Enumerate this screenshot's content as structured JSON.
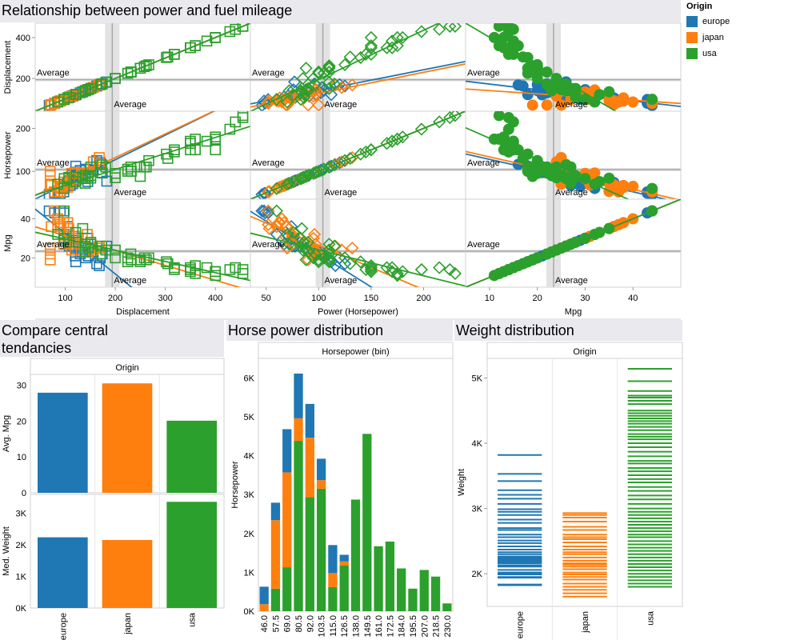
{
  "colors": {
    "europe": "#1f77b4",
    "japan": "#ff7f0e",
    "usa": "#2ca02c"
  },
  "legend": {
    "title": "Origin",
    "items": [
      {
        "label": "europe",
        "color": "#1f77b4"
      },
      {
        "label": "japan",
        "color": "#ff7f0e"
      },
      {
        "label": "usa",
        "color": "#2ca02c"
      }
    ]
  },
  "titles": {
    "scatter": "Relationship between power and fuel mileage",
    "central_1": "Compare central",
    "central_2": "tendancies",
    "hp": "Horse power distribution",
    "weight": "Weight distribution"
  },
  "chart_data": [
    {
      "type": "scatter",
      "title": "Relationship between power and fuel mileage",
      "variables": [
        "Displacement",
        "Horsepower",
        "Mpg"
      ],
      "axis_titles": [
        "Displacement",
        "Power (Horsepower)",
        "Mpg"
      ],
      "reference_label": "Average",
      "ranges": {
        "Displacement": [
          40,
          470
        ],
        "Horsepower": [
          35,
          240
        ],
        "Mpg": [
          5,
          50
        ]
      },
      "ticks": {
        "Displacement": [
          100,
          200,
          300,
          400
        ],
        "Horsepower": [
          50,
          100,
          150,
          200
        ],
        "Mpg": [
          10,
          20,
          30,
          40
        ]
      },
      "row_ticks": {
        "Displacement": [
          200,
          400
        ],
        "Horsepower": [
          100,
          200
        ],
        "Mpg": [
          20,
          40
        ]
      },
      "averages": {
        "Displacement": 194,
        "Horsepower": 104,
        "Mpg": 23.4
      },
      "marks": {
        "Displacement": "square",
        "Horsepower": "diamond",
        "Mpg": "circle"
      },
      "series": [
        {
          "name": "europe",
          "points": [
            [
              68,
              46,
              44
            ],
            [
              79,
              49,
              43
            ],
            [
              90,
              48,
              44
            ],
            [
              97,
              52,
              43
            ],
            [
              97,
              60,
              32
            ],
            [
              98,
              65,
              29
            ],
            [
              105,
              74,
              36
            ],
            [
              107,
              75,
              30
            ],
            [
              108,
              78,
              26
            ],
            [
              110,
              67,
              27
            ],
            [
              114,
              91,
              26
            ],
            [
              115,
              71,
              31
            ],
            [
              116,
              75,
              26
            ],
            [
              120,
              88,
              25
            ],
            [
              120,
              97,
              21
            ],
            [
              121,
              98,
              24
            ],
            [
              121,
              112,
              18
            ],
            [
              122,
              80,
              29
            ],
            [
              130,
              102,
              22
            ],
            [
              134,
              95,
              23
            ],
            [
              140,
              88,
              24
            ],
            [
              141,
              105,
              20
            ],
            [
              145,
              76,
              30
            ],
            [
              146,
              97,
              21
            ],
            [
              156,
              103,
              23
            ],
            [
              163,
              125,
              17
            ],
            [
              168,
              116,
              16
            ],
            [
              170,
              120,
              20
            ],
            [
              174,
              96,
              22
            ],
            [
              183,
              77,
              26
            ]
          ]
        },
        {
          "name": "japan",
          "points": [
            [
              70,
              70,
              25
            ],
            [
              70,
              90,
              19
            ],
            [
              70,
              100,
              22
            ],
            [
              72,
              69,
              36
            ],
            [
              78,
              52,
              44
            ],
            [
              85,
              52,
              37
            ],
            [
              85,
              65,
              40
            ],
            [
              89,
              62,
              38
            ],
            [
              91,
              53,
              35
            ],
            [
              91,
              60,
              36
            ],
            [
              97,
              67,
              38
            ],
            [
              97,
              75,
              27
            ],
            [
              98,
              68,
              31
            ],
            [
              105,
              63,
              38
            ],
            [
              107,
              72,
              35
            ],
            [
              108,
              75,
              32
            ],
            [
              113,
              95,
              24
            ],
            [
              119,
              82,
              30
            ],
            [
              119,
              97,
              27
            ],
            [
              120,
              75,
              31
            ],
            [
              120,
              97,
              24
            ],
            [
              134,
              95,
              30
            ],
            [
              144,
              96,
              32
            ],
            [
              146,
              97,
              23
            ],
            [
              156,
              122,
              24
            ],
            [
              168,
              132,
              25
            ],
            [
              168,
              116,
              26
            ]
          ]
        },
        {
          "name": "usa",
          "points": [
            [
              85,
              70,
              32
            ],
            [
              98,
              60,
              44
            ],
            [
              98,
              83,
              30
            ],
            [
              107,
              86,
              28
            ],
            [
              121,
              76,
              33
            ],
            [
              122,
              86,
              28
            ],
            [
              135,
              84,
              35
            ],
            [
              140,
              72,
              27
            ],
            [
              140,
              83,
              26
            ],
            [
              140,
              90,
              23
            ],
            [
              146,
              88,
              25
            ],
            [
              151,
              84,
              27
            ],
            [
              151,
              90,
              28
            ],
            [
              151,
              110,
              27
            ],
            [
              171,
              97,
              22
            ],
            [
              173,
              115,
              26
            ],
            [
              181,
              110,
              24
            ],
            [
              200,
              85,
              24
            ],
            [
              200,
              95,
              20
            ],
            [
              225,
              105,
              20
            ],
            [
              225,
              100,
              18
            ],
            [
              231,
              110,
              22
            ],
            [
              232,
              100,
              19
            ],
            [
              250,
              88,
              19
            ],
            [
              250,
              110,
              18
            ],
            [
              258,
              110,
              20
            ],
            [
              262,
              110,
              19
            ],
            [
              267,
              125,
              20
            ],
            [
              302,
              140,
              18
            ],
            [
              305,
              130,
              17
            ],
            [
              318,
              150,
              15
            ],
            [
              318,
              145,
              14
            ],
            [
              350,
              150,
              14
            ],
            [
              350,
              165,
              15
            ],
            [
              350,
              170,
              13
            ],
            [
              360,
              150,
              16
            ],
            [
              360,
              175,
              12
            ],
            [
              383,
              170,
              15
            ],
            [
              400,
              150,
              13
            ],
            [
              400,
              175,
              11
            ],
            [
              400,
              180,
              13
            ],
            [
              429,
              198,
              14
            ],
            [
              440,
              215,
              15
            ],
            [
              455,
              225,
              14
            ],
            [
              455,
              230,
              12
            ]
          ]
        }
      ]
    },
    {
      "type": "bar",
      "title": "Compare central tendancies",
      "header": "Origin",
      "categories": [
        "europe",
        "japan",
        "usa"
      ],
      "series": [
        {
          "name": "Avg. Mpg",
          "values": [
            27.9,
            30.5,
            20.1
          ],
          "ylim": [
            0,
            33
          ],
          "ticks": [
            0,
            10,
            20,
            30
          ],
          "tick_labels": [
            "0",
            "10",
            "20",
            "30"
          ]
        },
        {
          "name": "Med. Weight",
          "values": [
            2240,
            2155,
            3365
          ],
          "ylim": [
            0,
            3600
          ],
          "ticks": [
            0,
            1000,
            2000,
            3000
          ],
          "tick_labels": [
            "0K",
            "1K",
            "2K",
            "3K"
          ]
        }
      ]
    },
    {
      "type": "bar",
      "title": "Horse power distribution",
      "header": "Horsepower (bin)",
      "ylabel": "Horsepower",
      "stacked": true,
      "ylim": [
        0,
        6500
      ],
      "ticks": [
        0,
        1000,
        2000,
        3000,
        4000,
        5000,
        6000
      ],
      "tick_labels": [
        "0K",
        "1K",
        "2K",
        "3K",
        "4K",
        "5K",
        "6K"
      ],
      "categories": [
        "46.0",
        "57.5",
        "69.0",
        "80.5",
        "92.0",
        "103.5",
        "115.0",
        "126.5",
        "138.0",
        "149.5",
        "161.0",
        "172.5",
        "184.0",
        "195.5",
        "207.0",
        "218.5",
        "230.0"
      ],
      "series": [
        {
          "name": "usa",
          "values": [
            0,
            580,
            1130,
            4380,
            2930,
            3150,
            620,
            1180,
            2870,
            4560,
            1670,
            1790,
            1100,
            580,
            1060,
            890,
            200
          ]
        },
        {
          "name": "japan",
          "values": [
            180,
            1760,
            2440,
            580,
            1530,
            220,
            360,
            100,
            0,
            0,
            0,
            0,
            0,
            0,
            0,
            0,
            0
          ]
        },
        {
          "name": "europe",
          "values": [
            450,
            450,
            1110,
            1150,
            870,
            550,
            720,
            170,
            0,
            0,
            0,
            0,
            0,
            0,
            0,
            0,
            0
          ]
        }
      ]
    },
    {
      "type": "strip",
      "title": "Weight distribution",
      "header": "Origin",
      "ylabel": "Weight",
      "ylim": [
        1500,
        5300
      ],
      "ticks": [
        2000,
        3000,
        4000,
        5000
      ],
      "tick_labels": [
        "2K",
        "3K",
        "4K",
        "5K"
      ],
      "categories": [
        "europe",
        "japan",
        "usa"
      ],
      "series": [
        {
          "name": "europe",
          "values": [
            1825,
            1835,
            1940,
            1950,
            1990,
            2000,
            2020,
            2060,
            2110,
            2130,
            2160,
            2180,
            2200,
            2215,
            2230,
            2245,
            2265,
            2300,
            2330,
            2370,
            2420,
            2470,
            2510,
            2560,
            2600,
            2670,
            2700,
            2780,
            2830,
            2900,
            2950,
            2990,
            3070,
            3150,
            3210,
            3280,
            3420,
            3530,
            3820
          ]
        },
        {
          "name": "japan",
          "values": [
            1650,
            1700,
            1755,
            1800,
            1850,
            1910,
            1950,
            1990,
            2020,
            2070,
            2110,
            2140,
            2160,
            2200,
            2250,
            2300,
            2330,
            2370,
            2420,
            2480,
            2530,
            2560,
            2600,
            2670,
            2720,
            2800,
            2860,
            2900,
            2930
          ]
        },
        {
          "name": "usa",
          "values": [
            1800,
            1850,
            1900,
            1950,
            2000,
            2050,
            2100,
            2150,
            2200,
            2250,
            2300,
            2350,
            2400,
            2450,
            2500,
            2560,
            2600,
            2650,
            2700,
            2750,
            2800,
            2850,
            2900,
            2950,
            3000,
            3070,
            3140,
            3200,
            3270,
            3330,
            3400,
            3450,
            3510,
            3570,
            3620,
            3690,
            3730,
            3800,
            3870,
            3940,
            4000,
            4060,
            4100,
            4140,
            4200,
            4250,
            4300,
            4340,
            4380,
            4420,
            4460,
            4500,
            4600,
            4650,
            4700,
            4730,
            4800,
            4950,
            5140
          ]
        }
      ]
    }
  ]
}
